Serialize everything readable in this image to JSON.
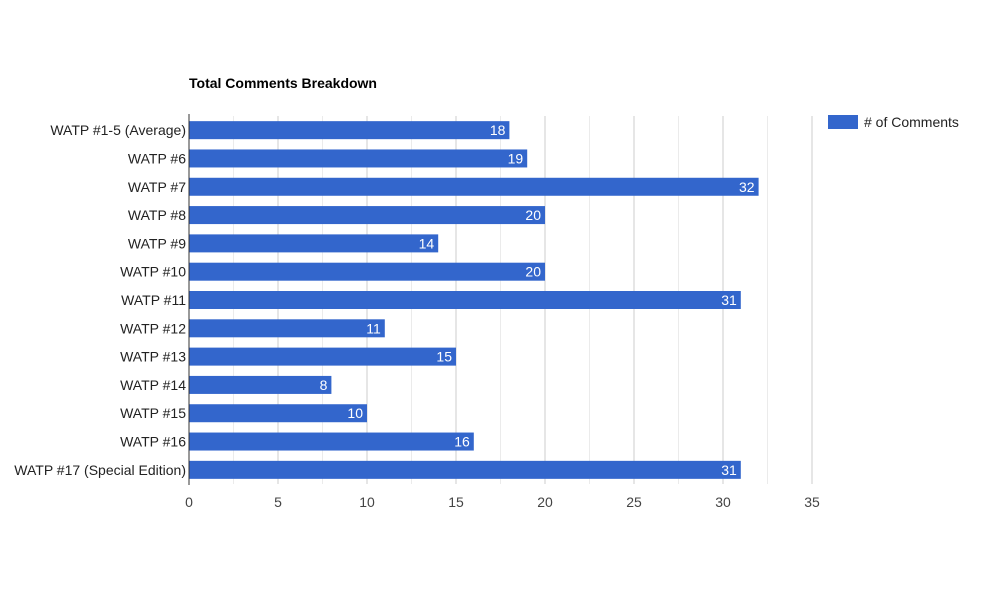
{
  "chart_data": {
    "type": "bar",
    "orientation": "horizontal",
    "title": "Total Comments Breakdown",
    "xlabel": "",
    "ylabel": "",
    "categories": [
      "WATP #1-5 (Average)",
      "WATP #6",
      "WATP #7",
      "WATP #8",
      "WATP #9",
      "WATP #10",
      "WATP #11",
      "WATP #12",
      "WATP #13",
      "WATP #14",
      "WATP #15",
      "WATP #16",
      "WATP #17 (Special Edition)"
    ],
    "series": [
      {
        "name": "# of Comments",
        "values": [
          18,
          19,
          32,
          20,
          14,
          20,
          31,
          11,
          15,
          8,
          10,
          16,
          31
        ]
      }
    ],
    "xlim": [
      0,
      35
    ],
    "xticks": [
      0,
      5,
      10,
      15,
      20,
      25,
      30,
      35
    ],
    "grid": true,
    "legend_position": "right",
    "colors": {
      "bar": "#3366cc",
      "grid_major": "#cccccc",
      "grid_minor": "#ebebeb",
      "axis": "#333333"
    }
  }
}
